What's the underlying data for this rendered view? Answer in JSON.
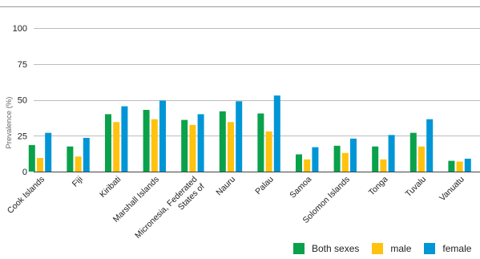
{
  "chart_data": {
    "type": "bar",
    "title": "",
    "xlabel": "",
    "ylabel": "Prevalence (%)",
    "ylim": [
      0,
      100
    ],
    "yticks": [
      0,
      25,
      50,
      75,
      100
    ],
    "grid": "horizontal",
    "legend_position": "bottom-right",
    "categories": [
      "Cook Islands",
      "Fiji",
      "Kiribati",
      "Marshall Islands",
      "Micronesia, Federated States of",
      "Nauru",
      "Palau",
      "Samoa",
      "Solomon Islands",
      "Tonga",
      "Tuvalu",
      "Vanuatu"
    ],
    "category_lines": [
      [
        "Cook Islands"
      ],
      [
        "Fiji"
      ],
      [
        "Kiribati"
      ],
      [
        "Marshall Islands"
      ],
      [
        "Micronesia, Federated",
        "States of"
      ],
      [
        "Nauru"
      ],
      [
        "Palau"
      ],
      [
        "Samoa"
      ],
      [
        "Solomon Islands"
      ],
      [
        "Tonga"
      ],
      [
        "Tuvalu"
      ],
      [
        "Vanuatu"
      ]
    ],
    "series": [
      {
        "name": "Both sexes",
        "color": "#0aa14b",
        "values": [
          18.5,
          17.5,
          40,
          43,
          36,
          42,
          40.5,
          12,
          18,
          17.5,
          27,
          7.5
        ]
      },
      {
        "name": "male",
        "color": "#ffc20e",
        "values": [
          9.5,
          10.5,
          34.5,
          36.5,
          32.5,
          34.5,
          28,
          8.5,
          13,
          8.5,
          17.5,
          7
        ]
      },
      {
        "name": "female",
        "color": "#0096d6",
        "values": [
          27,
          23.5,
          45.5,
          49.5,
          40,
          49,
          53,
          17,
          23,
          25.5,
          36.5,
          9
        ]
      }
    ]
  }
}
